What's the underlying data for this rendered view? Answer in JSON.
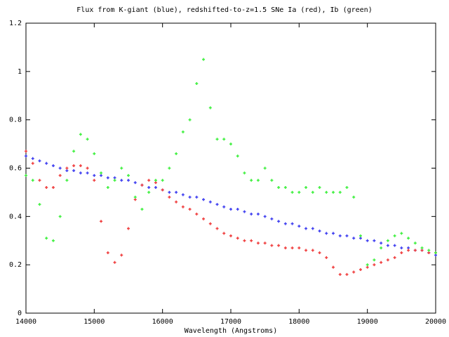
{
  "chart_data": {
    "type": "scatter",
    "title": "Flux from K-giant (blue), redshifted-to-z=1.5 SNe Ia (red), Ib (green)",
    "x_label": "Wavelength (Angstroms)",
    "x": [
      14000,
      14100,
      14200,
      14300,
      14400,
      14500,
      14600,
      14700,
      14800,
      14900,
      15000,
      15100,
      15200,
      15300,
      15400,
      15500,
      15600,
      15700,
      15800,
      15900,
      16000,
      16100,
      16200,
      16300,
      16400,
      16500,
      16600,
      16700,
      16800,
      16900,
      17000,
      17100,
      17200,
      17300,
      17400,
      17500,
      17600,
      17700,
      17800,
      17900,
      18000,
      18100,
      18200,
      18300,
      18400,
      18500,
      18600,
      18700,
      18800,
      18900,
      19000,
      19100,
      19200,
      19300,
      19400,
      19500,
      19600,
      19700,
      19800,
      19900,
      20000
    ],
    "series": [
      {
        "name": "K-giant",
        "color": "#4040f0",
        "values": [
          0.65,
          0.64,
          0.63,
          0.62,
          0.61,
          0.6,
          0.59,
          0.59,
          0.58,
          0.58,
          0.57,
          0.57,
          0.56,
          0.56,
          0.55,
          0.55,
          0.54,
          0.53,
          0.52,
          0.52,
          0.51,
          0.5,
          0.5,
          0.49,
          0.48,
          0.48,
          0.47,
          0.46,
          0.45,
          0.44,
          0.43,
          0.43,
          0.42,
          0.41,
          0.41,
          0.4,
          0.39,
          0.38,
          0.37,
          0.37,
          0.36,
          0.35,
          0.35,
          0.34,
          0.33,
          0.33,
          0.32,
          0.32,
          0.31,
          0.31,
          0.3,
          0.3,
          0.29,
          0.28,
          0.28,
          0.27,
          0.27,
          0.26,
          0.26,
          0.25,
          0.24
        ]
      },
      {
        "name": "SNe Ia",
        "color": "#f04040",
        "values": [
          0.67,
          0.62,
          0.55,
          0.52,
          0.52,
          0.57,
          0.6,
          0.61,
          0.61,
          0.6,
          0.55,
          0.38,
          0.25,
          0.21,
          0.24,
          0.35,
          0.47,
          0.53,
          0.55,
          0.54,
          0.51,
          0.48,
          0.46,
          0.44,
          0.43,
          0.41,
          0.39,
          0.37,
          0.35,
          0.33,
          0.32,
          0.31,
          0.3,
          0.3,
          0.29,
          0.29,
          0.28,
          0.28,
          0.27,
          0.27,
          0.27,
          0.26,
          0.26,
          0.25,
          0.23,
          0.19,
          0.16,
          0.16,
          0.17,
          0.18,
          0.19,
          0.2,
          0.21,
          0.22,
          0.23,
          0.25,
          0.26,
          0.26,
          0.26,
          0.25,
          0.25
        ]
      },
      {
        "name": "Ib",
        "color": "#40f040",
        "values": [
          0.57,
          0.55,
          0.45,
          0.31,
          0.3,
          0.4,
          0.55,
          0.67,
          0.74,
          0.72,
          0.66,
          0.58,
          0.52,
          0.55,
          0.6,
          0.57,
          0.48,
          0.43,
          0.5,
          0.55,
          0.55,
          0.6,
          0.66,
          0.75,
          0.8,
          0.95,
          1.05,
          0.85,
          0.72,
          0.72,
          0.7,
          0.65,
          0.58,
          0.55,
          0.55,
          0.6,
          0.55,
          0.52,
          0.52,
          0.5,
          0.5,
          0.52,
          0.5,
          0.52,
          0.5,
          0.5,
          0.5,
          0.52,
          0.48,
          0.32,
          0.2,
          0.22,
          0.27,
          0.3,
          0.32,
          0.33,
          0.31,
          0.29,
          0.27,
          0.26,
          0.25
        ]
      }
    ],
    "xlim": [
      14000,
      20000
    ],
    "ylim": [
      0,
      1.2
    ],
    "xticks": [
      14000,
      15000,
      16000,
      17000,
      18000,
      19000,
      20000
    ],
    "yticks": [
      0,
      0.2,
      0.4,
      0.6,
      0.8,
      1,
      1.2
    ]
  }
}
